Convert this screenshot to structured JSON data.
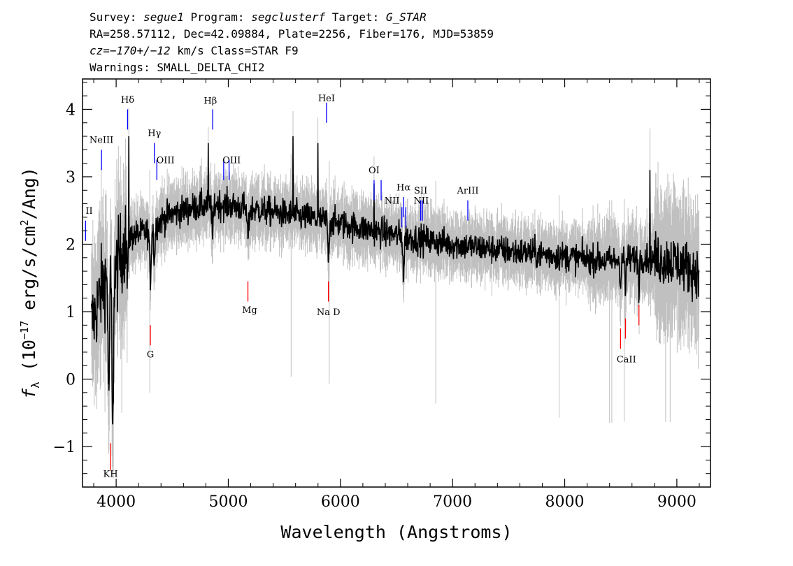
{
  "header": {
    "line1": [
      {
        "t": "Survey: ",
        "it": false
      },
      {
        "t": "segue1",
        "it": true
      },
      {
        "t": " Program: ",
        "it": false
      },
      {
        "t": "segclusterf",
        "it": true
      },
      {
        "t": " Target: ",
        "it": false
      },
      {
        "t": "G_STAR",
        "it": true
      }
    ],
    "line2": "RA=258.57112, Dec=42.09884, Plate=2256, Fiber=176, MJD=53859",
    "line3": [
      {
        "t": "cz=",
        "it": true
      },
      {
        "t": "−170+/−12",
        "it": true
      },
      {
        "t": " km/s Class=STAR F9",
        "it": false
      }
    ],
    "line4": "Warnings: SMALL_DELTA_CHI2"
  },
  "chart_data": {
    "type": "line",
    "xlabel": "Wavelength (Angstroms)",
    "ylabel_prefix": "f",
    "ylabel_sub": "λ",
    "ylabel_rest": " (10",
    "ylabel_exp": "−17",
    "ylabel_units": " erg/s/cm",
    "ylabel_units_exp": "2",
    "ylabel_tail": "/Ang)",
    "xlim": [
      3700,
      9300
    ],
    "ylim": [
      -1.6,
      4.45
    ],
    "x_ticks": [
      4000,
      5000,
      6000,
      7000,
      8000,
      9000
    ],
    "x_tick_labels": [
      "4000",
      "5000",
      "6000",
      "7000",
      "8000",
      "9000"
    ],
    "y_ticks": [
      -1,
      0,
      1,
      2,
      3,
      4
    ],
    "y_tick_labels": [
      "−1",
      "0",
      "1",
      "2",
      "3",
      "4"
    ],
    "x_minor_step": 200,
    "y_minor_step": 0.2,
    "grid": false,
    "spectrum_color": "#000000",
    "error_color": "#c0c0c0",
    "continuum": [
      [
        3780,
        0.8
      ],
      [
        3850,
        1.2
      ],
      [
        3900,
        1.5
      ],
      [
        3950,
        1.4
      ],
      [
        4000,
        1.6
      ],
      [
        4050,
        1.9
      ],
      [
        4100,
        2.1
      ],
      [
        4200,
        2.15
      ],
      [
        4300,
        2.2
      ],
      [
        4400,
        2.35
      ],
      [
        4500,
        2.45
      ],
      [
        4700,
        2.55
      ],
      [
        4900,
        2.6
      ],
      [
        5100,
        2.55
      ],
      [
        5300,
        2.5
      ],
      [
        5500,
        2.45
      ],
      [
        5700,
        2.4
      ],
      [
        6000,
        2.3
      ],
      [
        6300,
        2.2
      ],
      [
        6600,
        2.1
      ],
      [
        7000,
        2.0
      ],
      [
        7500,
        1.9
      ],
      [
        8000,
        1.82
      ],
      [
        8400,
        1.75
      ],
      [
        8700,
        1.8
      ],
      [
        9000,
        1.75
      ],
      [
        9150,
        1.6
      ],
      [
        9200,
        1.4
      ]
    ],
    "absorption_features": [
      {
        "x": 3934,
        "depth": 1.8,
        "width": 8
      },
      {
        "x": 3969,
        "depth": 2.5,
        "width": 8
      },
      {
        "x": 4102,
        "depth": 0.6,
        "width": 8
      },
      {
        "x": 4305,
        "depth": 0.7,
        "width": 10
      },
      {
        "x": 4341,
        "depth": 0.5,
        "width": 8
      },
      {
        "x": 4861,
        "depth": 0.5,
        "width": 8
      },
      {
        "x": 5175,
        "depth": 0.4,
        "width": 12
      },
      {
        "x": 5893,
        "depth": 0.5,
        "width": 8
      },
      {
        "x": 6563,
        "depth": 0.6,
        "width": 8
      },
      {
        "x": 8498,
        "depth": 0.4,
        "width": 6
      },
      {
        "x": 8542,
        "depth": 0.5,
        "width": 6
      },
      {
        "x": 8662,
        "depth": 0.45,
        "width": 6
      }
    ],
    "spikes": [
      {
        "x": 4112,
        "y": 3.6
      },
      {
        "x": 4820,
        "y": 3.5
      },
      {
        "x": 5577,
        "y": 3.6
      },
      {
        "x": 5800,
        "y": 3.5
      },
      {
        "x": 6300,
        "y": 2.9
      },
      {
        "x": 8760,
        "y": 3.1
      },
      {
        "x": 9180,
        "y": 1.9
      }
    ],
    "line_markers": [
      {
        "label": "H",
        "sub": "",
        "greek": "",
        "text": "KH",
        "x": 3950,
        "y1": -1.35,
        "y2": -0.95,
        "color": "#ff0000",
        "lx": 3950,
        "ly": -1.45,
        "anchor": "middle"
      },
      {
        "label": "G",
        "sub": "",
        "greek": "",
        "text": "G",
        "x": 4305,
        "y1": 0.5,
        "y2": 0.8,
        "color": "#ff0000",
        "lx": 4305,
        "ly": 0.32,
        "anchor": "middle"
      },
      {
        "label": "Mg",
        "sub": "",
        "greek": "",
        "text": "Mg",
        "x": 5175,
        "y1": 1.15,
        "y2": 1.45,
        "color": "#ff0000",
        "lx": 5190,
        "ly": 0.98,
        "anchor": "middle"
      },
      {
        "label": "Na D",
        "sub": "",
        "greek": "",
        "text": "Na D",
        "x": 5893,
        "y1": 1.15,
        "y2": 1.45,
        "color": "#ff0000",
        "lx": 5893,
        "ly": 0.95,
        "anchor": "middle"
      },
      {
        "label": "CaII",
        "sub": "",
        "greek": "",
        "text": "CaII",
        "x": 8498,
        "y1": 0.45,
        "y2": 0.75,
        "color": "#ff0000",
        "lx": 8550,
        "ly": 0.25,
        "anchor": "middle"
      },
      {
        "label": "CaII",
        "sub": "",
        "greek": "",
        "text": "",
        "x": 8542,
        "y1": 0.6,
        "y2": 0.9,
        "color": "#ff0000",
        "lx": 0,
        "ly": 0,
        "anchor": "middle"
      },
      {
        "label": "CaII",
        "sub": "",
        "greek": "",
        "text": "",
        "x": 8662,
        "y1": 0.8,
        "y2": 1.1,
        "color": "#ff0000",
        "lx": 0,
        "ly": 0,
        "anchor": "middle"
      },
      {
        "label": "II",
        "text": "II",
        "x": 3727,
        "y1": 2.05,
        "y2": 2.35,
        "color": "#0000ff",
        "lx": 3727,
        "ly": 2.45,
        "anchor": "start"
      },
      {
        "label": "NeIII",
        "text": "NeIII",
        "x": 3869,
        "y1": 3.1,
        "y2": 3.4,
        "color": "#0000ff",
        "lx": 3869,
        "ly": 3.5,
        "anchor": "middle"
      },
      {
        "label": "Hδ",
        "text": "Hδ",
        "x": 4102,
        "y1": 3.7,
        "y2": 4.0,
        "color": "#0000ff",
        "lx": 4102,
        "ly": 4.1,
        "anchor": "middle"
      },
      {
        "label": "Hγ",
        "text": "Hγ",
        "x": 4341,
        "y1": 3.2,
        "y2": 3.5,
        "color": "#0000ff",
        "lx": 4341,
        "ly": 3.6,
        "anchor": "middle"
      },
      {
        "label": "OIII",
        "text": "OIII",
        "x": 4363,
        "y1": 2.95,
        "y2": 3.25,
        "color": "#0000ff",
        "lx": 4440,
        "ly": 3.2,
        "anchor": "middle"
      },
      {
        "label": "Hβ",
        "text": "Hβ",
        "x": 4861,
        "y1": 3.7,
        "y2": 4.0,
        "color": "#0000ff",
        "lx": 4840,
        "ly": 4.08,
        "anchor": "middle"
      },
      {
        "label": "OIII",
        "text": "OIII",
        "x": 4959,
        "y1": 2.95,
        "y2": 3.25,
        "color": "#0000ff",
        "lx": 5030,
        "ly": 3.2,
        "anchor": "middle"
      },
      {
        "label": "OIII",
        "text": "",
        "x": 5007,
        "y1": 2.95,
        "y2": 3.25,
        "color": "#0000ff",
        "lx": 0,
        "ly": 0,
        "anchor": "middle"
      },
      {
        "label": "HeI",
        "text": "HeI",
        "x": 5876,
        "y1": 3.8,
        "y2": 4.1,
        "color": "#0000ff",
        "lx": 5876,
        "ly": 4.12,
        "anchor": "middle"
      },
      {
        "label": "OI",
        "text": "OI",
        "x": 6300,
        "y1": 2.65,
        "y2": 2.95,
        "color": "#0000ff",
        "lx": 6300,
        "ly": 3.05,
        "anchor": "middle"
      },
      {
        "label": "OI",
        "text": "",
        "x": 6363,
        "y1": 2.65,
        "y2": 2.95,
        "color": "#0000ff",
        "lx": 0,
        "ly": 0,
        "anchor": "middle"
      },
      {
        "label": "NII",
        "text": "NII",
        "x": 6548,
        "y1": 2.25,
        "y2": 2.55,
        "color": "#0000ff",
        "lx": 6460,
        "ly": 2.6,
        "anchor": "middle"
      },
      {
        "label": "Hα",
        "text": "Hα",
        "x": 6563,
        "y1": 2.4,
        "y2": 2.7,
        "color": "#0000ff",
        "lx": 6563,
        "ly": 2.8,
        "anchor": "middle"
      },
      {
        "label": "NII",
        "text": "NII",
        "x": 6583,
        "y1": 2.25,
        "y2": 2.55,
        "color": "#0000ff",
        "lx": 6720,
        "ly": 2.6,
        "anchor": "middle"
      },
      {
        "label": "SII",
        "text": "SII",
        "x": 6716,
        "y1": 2.35,
        "y2": 2.65,
        "color": "#0000ff",
        "lx": 6716,
        "ly": 2.75,
        "anchor": "middle"
      },
      {
        "label": "SII",
        "text": "",
        "x": 6731,
        "y1": 2.35,
        "y2": 2.65,
        "color": "#0000ff",
        "lx": 0,
        "ly": 0,
        "anchor": "middle"
      },
      {
        "label": "ArIII",
        "text": "ArIII",
        "x": 7136,
        "y1": 2.35,
        "y2": 2.65,
        "color": "#0000ff",
        "lx": 7136,
        "ly": 2.75,
        "anchor": "middle"
      }
    ]
  }
}
